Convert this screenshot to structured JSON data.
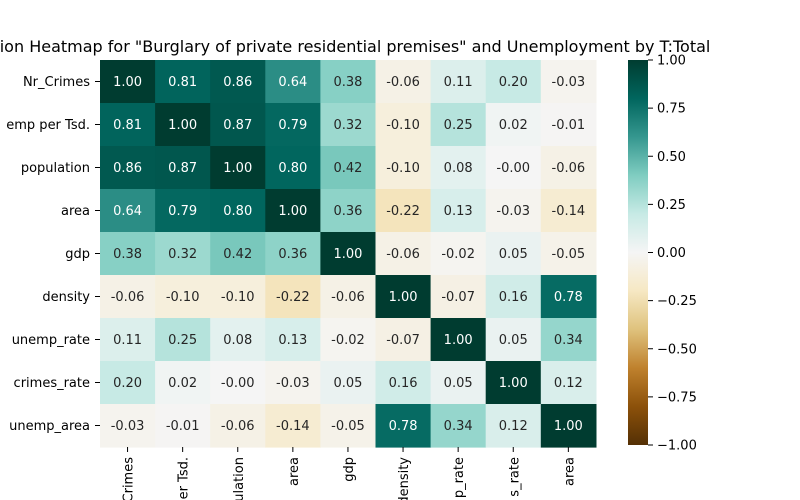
{
  "chart_data": {
    "type": "heatmap",
    "title": "ation Heatmap for \"Burglary of private residential premises\" and Unemployment by T:Total",
    "row_labels": [
      "Nr_Crimes",
      "emp per Tsd.",
      "population",
      "area",
      "gdp",
      "density",
      "unemp_rate",
      "crimes_rate",
      "unemp_area"
    ],
    "col_labels": [
      "Crimes",
      "er Tsd.",
      "ulation",
      "area",
      "gdp",
      "density",
      "p_rate",
      "s_rate",
      "area"
    ],
    "values": [
      [
        1.0,
        0.81,
        0.86,
        0.64,
        0.38,
        -0.06,
        0.11,
        0.2,
        -0.03
      ],
      [
        0.81,
        1.0,
        0.87,
        0.79,
        0.32,
        -0.1,
        0.25,
        0.02,
        -0.01
      ],
      [
        0.86,
        0.87,
        1.0,
        0.8,
        0.42,
        -0.1,
        0.08,
        -0.0,
        -0.06
      ],
      [
        0.64,
        0.79,
        0.8,
        1.0,
        0.36,
        -0.22,
        0.13,
        -0.03,
        -0.14
      ],
      [
        0.38,
        0.32,
        0.42,
        0.36,
        1.0,
        -0.06,
        -0.02,
        0.05,
        -0.05
      ],
      [
        -0.06,
        -0.1,
        -0.1,
        -0.22,
        -0.06,
        1.0,
        -0.07,
        0.16,
        0.78
      ],
      [
        0.11,
        0.25,
        0.08,
        0.13,
        -0.02,
        -0.07,
        1.0,
        0.05,
        0.34
      ],
      [
        0.2,
        0.02,
        -0.0,
        -0.03,
        0.05,
        0.16,
        0.05,
        1.0,
        0.12
      ],
      [
        -0.03,
        -0.01,
        -0.06,
        -0.14,
        -0.05,
        0.78,
        0.34,
        0.12,
        1.0
      ]
    ],
    "value_labels": [
      [
        "1.00",
        "0.81",
        "0.86",
        "0.64",
        "0.38",
        "-0.06",
        "0.11",
        "0.20",
        "-0.03"
      ],
      [
        "0.81",
        "1.00",
        "0.87",
        "0.79",
        "0.32",
        "-0.10",
        "0.25",
        "0.02",
        "-0.01"
      ],
      [
        "0.86",
        "0.87",
        "1.00",
        "0.80",
        "0.42",
        "-0.10",
        "0.08",
        "-0.00",
        "-0.06"
      ],
      [
        "0.64",
        "0.79",
        "0.80",
        "1.00",
        "0.36",
        "-0.22",
        "0.13",
        "-0.03",
        "-0.14"
      ],
      [
        "0.38",
        "0.32",
        "0.42",
        "0.36",
        "1.00",
        "-0.06",
        "-0.02",
        "0.05",
        "-0.05"
      ],
      [
        "-0.06",
        "-0.10",
        "-0.10",
        "-0.22",
        "-0.06",
        "1.00",
        "-0.07",
        "0.16",
        "0.78"
      ],
      [
        "0.11",
        "0.25",
        "0.08",
        "0.13",
        "-0.02",
        "-0.07",
        "1.00",
        "0.05",
        "0.34"
      ],
      [
        "0.20",
        "0.02",
        "-0.00",
        "-0.03",
        "0.05",
        "0.16",
        "0.05",
        "1.00",
        "0.12"
      ],
      [
        "-0.03",
        "-0.01",
        "-0.06",
        "-0.14",
        "-0.05",
        "0.78",
        "0.34",
        "0.12",
        "1.00"
      ]
    ],
    "colorbar": {
      "range": [
        -1.0,
        1.0
      ],
      "ticks": [
        1.0,
        0.75,
        0.5,
        0.25,
        0.0,
        -0.25,
        -0.5,
        -0.75,
        -1.0
      ],
      "tick_labels": [
        "1.00",
        "0.75",
        "0.50",
        "0.25",
        "0.00",
        "−0.25",
        "−0.50",
        "−0.75",
        "−1.00"
      ]
    },
    "colormap": {
      "name": "BrBG",
      "stops": [
        [
          -1.0,
          "#543005"
        ],
        [
          -0.8,
          "#8c510a"
        ],
        [
          -0.6,
          "#bf812d"
        ],
        [
          -0.4,
          "#dfc27d"
        ],
        [
          -0.2,
          "#f6e8c3"
        ],
        [
          0.0,
          "#f5f5f5"
        ],
        [
          0.2,
          "#c7eae5"
        ],
        [
          0.4,
          "#80cdc1"
        ],
        [
          0.6,
          "#35978f"
        ],
        [
          0.8,
          "#01665e"
        ],
        [
          1.0,
          "#003c30"
        ]
      ]
    },
    "grid": false
  }
}
